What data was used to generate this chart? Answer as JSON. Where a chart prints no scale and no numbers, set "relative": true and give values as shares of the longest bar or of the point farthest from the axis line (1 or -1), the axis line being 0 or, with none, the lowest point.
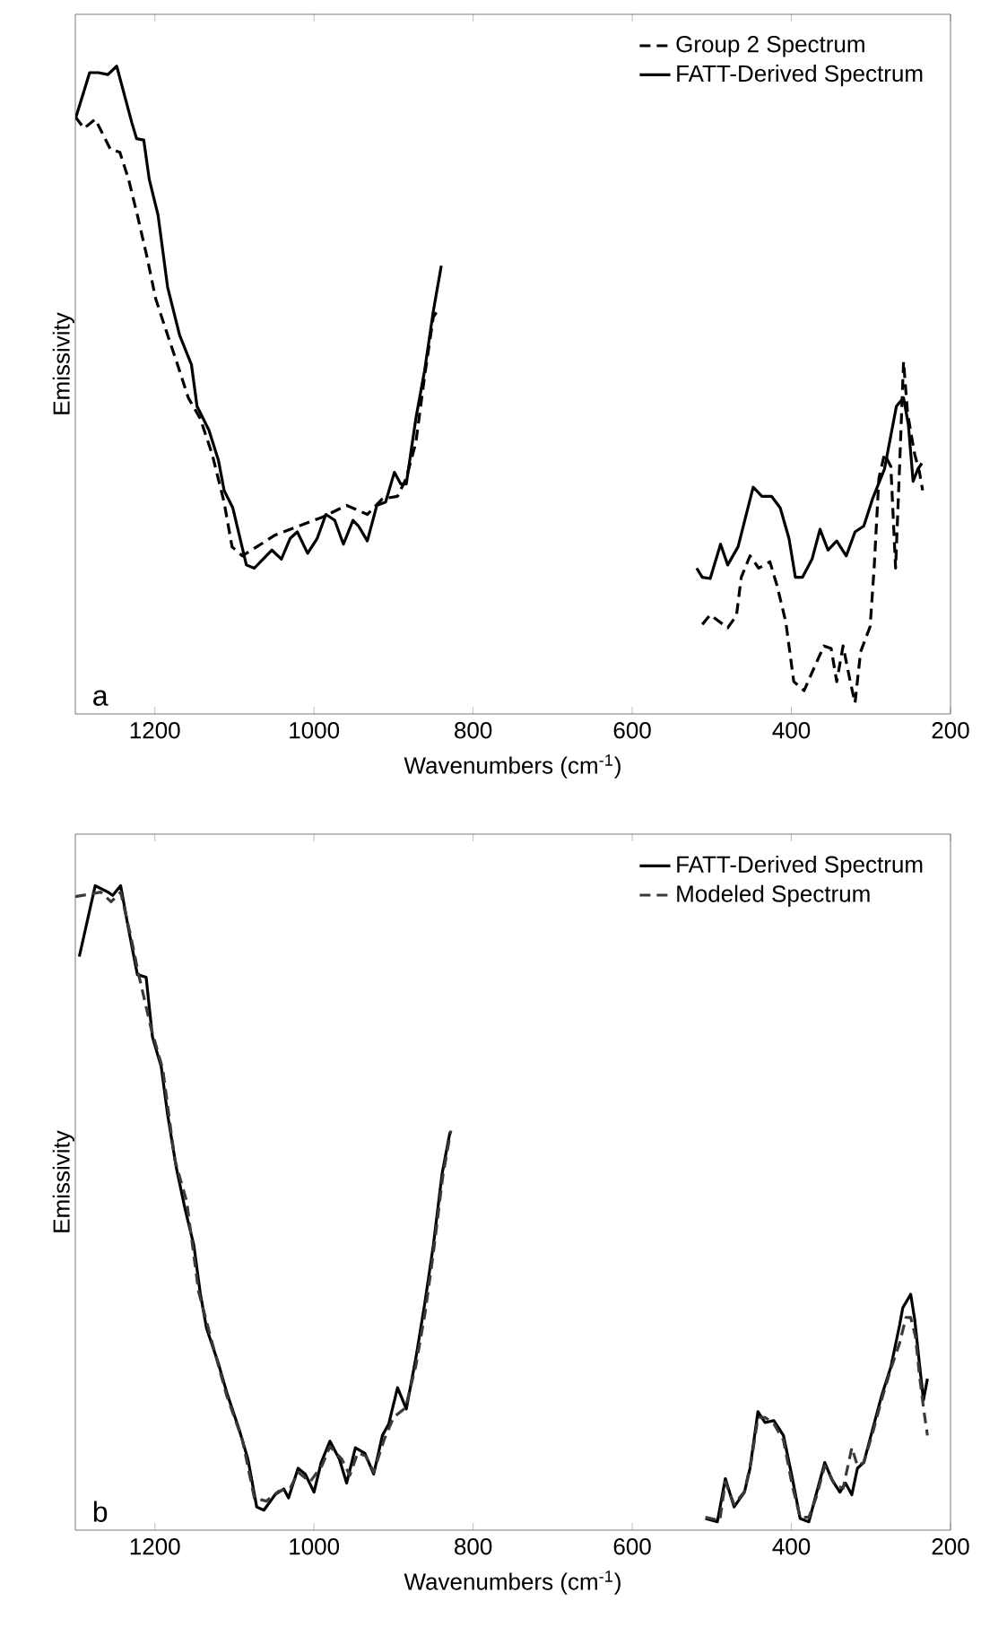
{
  "chart_data": [
    {
      "type": "line",
      "relative": true,
      "xlabel": "Wavenumbers (cm$^{-1}$)",
      "ylabel": "Emissivity",
      "xlim": [
        1300,
        200
      ],
      "xticks": [
        1200,
        1000,
        800,
        600,
        400,
        200
      ],
      "tick_labels": "x",
      "legend": "top right",
      "annotations": [
        "a"
      ],
      "series": [
        {
          "name": "Group 2 Spectrum",
          "color": "#000000",
          "line_style": "dashed",
          "x": [
            1300,
            1289,
            1275,
            1267,
            1256,
            1244,
            1233,
            1222,
            1210,
            1199,
            1184,
            1169,
            1158,
            1143,
            1128,
            1113,
            1103,
            1090,
            1072,
            1049,
            1019,
            989,
            959,
            933,
            914,
            895,
            884,
            872,
            861,
            850,
            845,
            700,
            512,
            502,
            480,
            469,
            463,
            452,
            441,
            427,
            418,
            407,
            397,
            384,
            369,
            359,
            350,
            343,
            335,
            326,
            320,
            313,
            301,
            296,
            290,
            283,
            275,
            269,
            264,
            259,
            254,
            249,
            245,
            239,
            235
          ],
          "values": [
            0.922,
            0.904,
            0.918,
            0.899,
            0.872,
            0.867,
            0.825,
            0.77,
            0.706,
            0.641,
            0.585,
            0.53,
            0.488,
            0.456,
            0.401,
            0.327,
            0.258,
            0.244,
            0.258,
            0.276,
            0.29,
            0.304,
            0.322,
            0.308,
            0.332,
            0.336,
            0.364,
            0.419,
            0.521,
            0.613,
            0.622,
            null,
            0.138,
            0.153,
            0.133,
            0.152,
            0.211,
            0.244,
            0.225,
            0.235,
            0.198,
            0.142,
            0.05,
            0.036,
            0.078,
            0.105,
            0.101,
            0.05,
            0.105,
            0.05,
            0.017,
            0.096,
            0.135,
            0.225,
            0.364,
            0.401,
            0.382,
            0.225,
            0.382,
            0.544,
            0.465,
            0.429,
            0.401,
            0.373,
            0.345
          ]
        },
        {
          "name": "FATT-Derived Spectrum",
          "color": "#000000",
          "line_style": "solid",
          "x": [
            1300,
            1282,
            1271,
            1259,
            1248,
            1229,
            1223,
            1214,
            1207,
            1196,
            1184,
            1169,
            1154,
            1147,
            1132,
            1120,
            1113,
            1102,
            1085,
            1075,
            1064,
            1053,
            1041,
            1030,
            1021,
            1008,
            996,
            985,
            974,
            963,
            951,
            944,
            933,
            921,
            910,
            899,
            891,
            884,
            872,
            861,
            850,
            840,
            700,
            519,
            512,
            502,
            489,
            480,
            467,
            448,
            437,
            425,
            414,
            403,
            395,
            386,
            374,
            364,
            354,
            343,
            331,
            320,
            309,
            298,
            283,
            268,
            259,
            253,
            247,
            241,
            236
          ],
          "values": [
            0.918,
            0.99,
            0.99,
            0.987,
            1.0,
            0.913,
            0.888,
            0.886,
            0.825,
            0.77,
            0.659,
            0.585,
            0.539,
            0.475,
            0.438,
            0.391,
            0.345,
            0.318,
            0.23,
            0.225,
            0.239,
            0.253,
            0.239,
            0.271,
            0.281,
            0.248,
            0.271,
            0.308,
            0.299,
            0.262,
            0.299,
            0.29,
            0.267,
            0.322,
            0.327,
            0.373,
            0.355,
            0.355,
            0.456,
            0.53,
            0.622,
            0.692,
            null,
            0.225,
            0.211,
            0.209,
            0.262,
            0.23,
            0.258,
            0.35,
            0.336,
            0.336,
            0.318,
            0.271,
            0.211,
            0.211,
            0.239,
            0.285,
            0.253,
            0.267,
            0.244,
            0.281,
            0.29,
            0.332,
            0.378,
            0.475,
            0.488,
            0.447,
            0.359,
            0.378,
            0.387
          ]
        }
      ]
    },
    {
      "type": "line",
      "relative": true,
      "xlabel": "Wavenumbers (cm$^{-1}$)",
      "ylabel": "Emissivity",
      "xlim": [
        1300,
        200
      ],
      "xticks": [
        1200,
        1000,
        800,
        600,
        400,
        200
      ],
      "tick_labels": "x",
      "legend": "top right",
      "annotations": [
        "b"
      ],
      "series": [
        {
          "name": "FATT-Derived Spectrum",
          "color": "#000000",
          "line_style": "solid",
          "x": [
            1295,
            1275,
            1259,
            1253,
            1243,
            1233,
            1222,
            1211,
            1203,
            1192,
            1184,
            1173,
            1162,
            1151,
            1143,
            1135,
            1120,
            1109,
            1094,
            1083,
            1072,
            1063,
            1049,
            1038,
            1032,
            1020,
            1011,
            1000,
            991,
            980,
            968,
            959,
            948,
            936,
            925,
            914,
            906,
            895,
            884,
            872,
            861,
            850,
            839,
            829,
            700,
            508,
            493,
            483,
            472,
            459,
            452,
            442,
            433,
            422,
            410,
            399,
            389,
            378,
            369,
            358,
            349,
            339,
            332,
            324,
            317,
            309,
            298,
            286,
            275,
            264,
            260,
            250,
            245,
            239,
            234,
            229
          ],
          "values": [
            0.89,
            1.0,
            0.99,
            0.985,
            1.0,
            0.932,
            0.862,
            0.858,
            0.765,
            0.719,
            0.645,
            0.562,
            0.498,
            0.442,
            0.368,
            0.313,
            0.258,
            0.211,
            0.156,
            0.11,
            0.036,
            0.031,
            0.055,
            0.064,
            0.05,
            0.096,
            0.087,
            0.059,
            0.105,
            0.138,
            0.11,
            0.073,
            0.128,
            0.119,
            0.087,
            0.147,
            0.165,
            0.221,
            0.188,
            0.267,
            0.35,
            0.442,
            0.553,
            0.618,
            null,
            0.018,
            0.013,
            0.08,
            0.036,
            0.059,
            0.096,
            0.184,
            0.167,
            0.17,
            0.147,
            0.082,
            0.018,
            0.013,
            0.055,
            0.105,
            0.078,
            0.059,
            0.073,
            0.055,
            0.096,
            0.105,
            0.156,
            0.211,
            0.253,
            0.318,
            0.345,
            0.366,
            0.327,
            0.258,
            0.202,
            0.235
          ]
        },
        {
          "name": "Modeled Spectrum",
          "color": "#3a3a3a",
          "line_style": "dashed",
          "x": [
            1300,
            1282,
            1268,
            1255,
            1243,
            1230,
            1220,
            1205,
            1190,
            1175,
            1160,
            1145,
            1130,
            1110,
            1090,
            1075,
            1060,
            1045,
            1030,
            1020,
            1005,
            990,
            980,
            965,
            955,
            945,
            935,
            925,
            912,
            900,
            885,
            872,
            860,
            850,
            838,
            828,
            700,
            508,
            490,
            483,
            472,
            459,
            450,
            442,
            433,
            422,
            410,
            399,
            389,
            378,
            369,
            358,
            345,
            335,
            324,
            317,
            309,
            298,
            286,
            275,
            264,
            256,
            250,
            244,
            239,
            234,
            229
          ],
          "values": [
            0.983,
            0.987,
            0.99,
            0.975,
            0.99,
            0.92,
            0.86,
            0.78,
            0.715,
            0.575,
            0.51,
            0.37,
            0.3,
            0.21,
            0.14,
            0.05,
            0.045,
            0.06,
            0.065,
            0.09,
            0.075,
            0.1,
            0.13,
            0.11,
            0.085,
            0.12,
            0.115,
            0.09,
            0.14,
            0.175,
            0.19,
            0.255,
            0.34,
            0.43,
            0.55,
            0.62,
            null,
            0.02,
            0.015,
            0.075,
            0.04,
            0.06,
            0.11,
            0.175,
            0.175,
            0.165,
            0.14,
            0.07,
            0.02,
            0.02,
            0.05,
            0.1,
            0.07,
            0.065,
            0.128,
            0.1,
            0.105,
            0.15,
            0.205,
            0.25,
            0.29,
            0.33,
            0.33,
            0.3,
            0.24,
            0.19,
            0.147
          ]
        }
      ]
    }
  ]
}
